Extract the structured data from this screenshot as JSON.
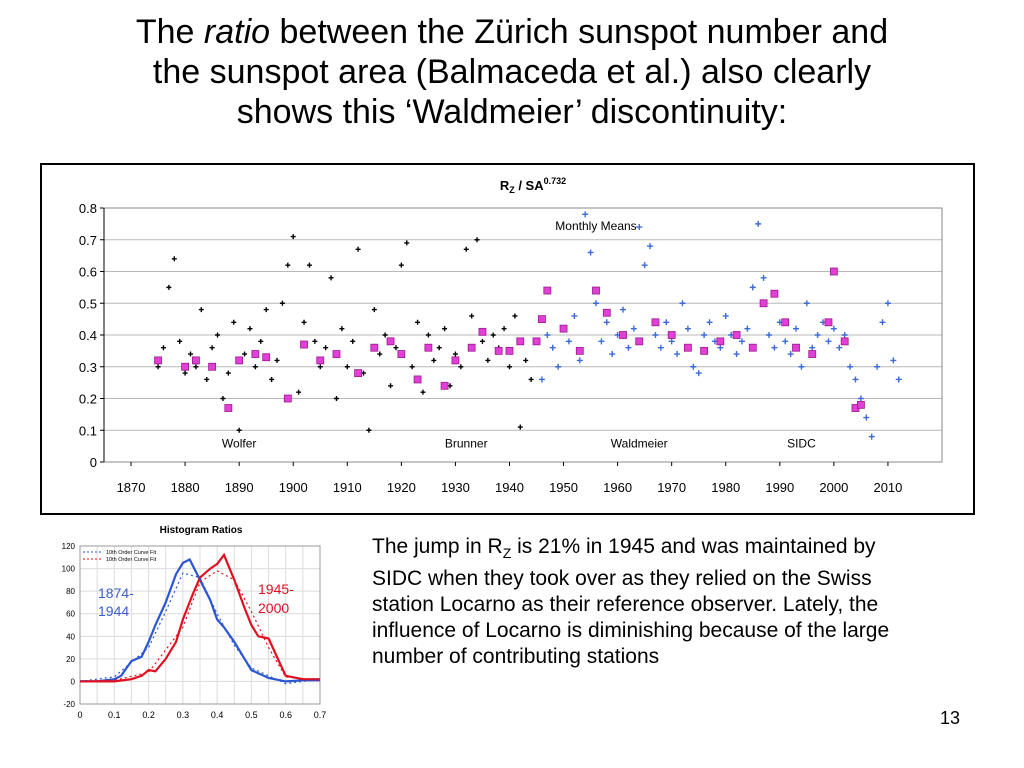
{
  "slide": {
    "title_pre": "The ",
    "title_em": "ratio",
    "title_post": " between the Zürich sunspot number and",
    "title_line2": "the sunspot area (Balmaceda et al.) also clearly",
    "title_line3": "shows this ‘Waldmeier’ discontinuity:",
    "body_pre": "The jump in R",
    "body_sub": "Z",
    "body_post": " is 21% in 1945 and was maintained by SIDC when they took over as they relied on the Swiss station Locarno as their reference observer. Lately, the influence of Locarno is diminishing because of the large number of contributing stations",
    "page_number": "13"
  },
  "chart_data": [
    {
      "type": "scatter",
      "title_main": "R",
      "title_sub": "Z",
      "title_mid": " / SA",
      "title_sup": "0.732",
      "annotation": "Monthly Means",
      "xlim": [
        1865,
        2020
      ],
      "ylim": [
        0,
        0.8
      ],
      "x_ticks": [
        1870,
        1880,
        1890,
        1900,
        1910,
        1920,
        1930,
        1940,
        1950,
        1960,
        1970,
        1980,
        1990,
        2000,
        2010
      ],
      "y_ticks": [
        0,
        0.1,
        0.2,
        0.3,
        0.4,
        0.5,
        0.6,
        0.7,
        0.8
      ],
      "y_tick_labels": [
        "0",
        "0.1",
        "0.2",
        "0.3",
        "0.4",
        "0.5",
        "0.6",
        "0.7",
        "0.8"
      ],
      "grid": true,
      "era_labels": [
        {
          "text": "Wolfer",
          "x": 1890
        },
        {
          "text": "Brunner",
          "x": 1932
        },
        {
          "text": "Waldmeier",
          "x": 1964
        },
        {
          "text": "SIDC",
          "x": 1994
        }
      ],
      "colors": {
        "monthly_before": "#000000",
        "monthly_after": "#3a6bd8",
        "yearly": "#e23fd8",
        "yearly_edge": "#9a1a8a"
      },
      "series": [
        {
          "role": "monthly_before",
          "marker": "+",
          "points": [
            [
              1875,
              0.3
            ],
            [
              1876,
              0.36
            ],
            [
              1877,
              0.55
            ],
            [
              1878,
              0.64
            ],
            [
              1879,
              0.38
            ],
            [
              1880,
              0.28
            ],
            [
              1881,
              0.34
            ],
            [
              1882,
              0.3
            ],
            [
              1883,
              0.48
            ],
            [
              1884,
              0.26
            ],
            [
              1885,
              0.36
            ],
            [
              1886,
              0.4
            ],
            [
              1887,
              0.2
            ],
            [
              1888,
              0.28
            ],
            [
              1889,
              0.44
            ],
            [
              1890,
              0.1
            ],
            [
              1891,
              0.34
            ],
            [
              1892,
              0.42
            ],
            [
              1893,
              0.3
            ],
            [
              1894,
              0.38
            ],
            [
              1895,
              0.48
            ],
            [
              1896,
              0.26
            ],
            [
              1897,
              0.32
            ],
            [
              1898,
              0.5
            ],
            [
              1899,
              0.62
            ],
            [
              1900,
              0.71
            ],
            [
              1901,
              0.22
            ],
            [
              1902,
              0.44
            ],
            [
              1903,
              0.62
            ],
            [
              1904,
              0.38
            ],
            [
              1905,
              0.3
            ],
            [
              1906,
              0.36
            ],
            [
              1907,
              0.58
            ],
            [
              1908,
              0.2
            ],
            [
              1909,
              0.42
            ],
            [
              1910,
              0.3
            ],
            [
              1911,
              0.38
            ],
            [
              1912,
              0.67
            ],
            [
              1913,
              0.28
            ],
            [
              1914,
              0.1
            ],
            [
              1915,
              0.48
            ],
            [
              1916,
              0.34
            ],
            [
              1917,
              0.4
            ],
            [
              1918,
              0.24
            ],
            [
              1919,
              0.36
            ],
            [
              1920,
              0.62
            ],
            [
              1921,
              0.69
            ],
            [
              1922,
              0.3
            ],
            [
              1923,
              0.44
            ],
            [
              1924,
              0.22
            ],
            [
              1925,
              0.4
            ],
            [
              1926,
              0.32
            ],
            [
              1927,
              0.36
            ],
            [
              1928,
              0.42
            ],
            [
              1929,
              0.24
            ],
            [
              1930,
              0.34
            ],
            [
              1931,
              0.3
            ],
            [
              1932,
              0.67
            ],
            [
              1933,
              0.46
            ],
            [
              1934,
              0.7
            ],
            [
              1935,
              0.38
            ],
            [
              1936,
              0.32
            ],
            [
              1937,
              0.4
            ],
            [
              1938,
              0.36
            ],
            [
              1939,
              0.42
            ],
            [
              1940,
              0.3
            ],
            [
              1941,
              0.46
            ],
            [
              1942,
              0.11
            ],
            [
              1943,
              0.32
            ],
            [
              1944,
              0.26
            ]
          ]
        },
        {
          "role": "monthly_after",
          "marker": "+",
          "points": [
            [
              1946,
              0.26
            ],
            [
              1947,
              0.4
            ],
            [
              1948,
              0.36
            ],
            [
              1949,
              0.3
            ],
            [
              1950,
              0.42
            ],
            [
              1951,
              0.38
            ],
            [
              1952,
              0.46
            ],
            [
              1953,
              0.32
            ],
            [
              1954,
              0.78
            ],
            [
              1955,
              0.66
            ],
            [
              1956,
              0.5
            ],
            [
              1957,
              0.38
            ],
            [
              1958,
              0.44
            ],
            [
              1959,
              0.34
            ],
            [
              1960,
              0.4
            ],
            [
              1961,
              0.48
            ],
            [
              1962,
              0.36
            ],
            [
              1963,
              0.42
            ],
            [
              1964,
              0.74
            ],
            [
              1965,
              0.62
            ],
            [
              1966,
              0.68
            ],
            [
              1967,
              0.4
            ],
            [
              1968,
              0.36
            ],
            [
              1969,
              0.44
            ],
            [
              1970,
              0.38
            ],
            [
              1971,
              0.34
            ],
            [
              1972,
              0.5
            ],
            [
              1973,
              0.42
            ],
            [
              1974,
              0.3
            ],
            [
              1975,
              0.28
            ],
            [
              1976,
              0.4
            ],
            [
              1977,
              0.44
            ],
            [
              1978,
              0.38
            ],
            [
              1979,
              0.36
            ],
            [
              1980,
              0.46
            ],
            [
              1981,
              0.4
            ],
            [
              1982,
              0.34
            ],
            [
              1983,
              0.38
            ],
            [
              1984,
              0.42
            ],
            [
              1985,
              0.55
            ],
            [
              1986,
              0.75
            ],
            [
              1987,
              0.58
            ],
            [
              1988,
              0.4
            ],
            [
              1989,
              0.36
            ],
            [
              1990,
              0.44
            ],
            [
              1991,
              0.38
            ],
            [
              1992,
              0.34
            ],
            [
              1993,
              0.42
            ],
            [
              1994,
              0.3
            ],
            [
              1995,
              0.5
            ],
            [
              1996,
              0.36
            ],
            [
              1997,
              0.4
            ],
            [
              1998,
              0.44
            ],
            [
              1999,
              0.38
            ],
            [
              2000,
              0.42
            ],
            [
              2001,
              0.36
            ],
            [
              2002,
              0.4
            ],
            [
              2003,
              0.3
            ],
            [
              2004,
              0.26
            ],
            [
              2005,
              0.2
            ],
            [
              2006,
              0.14
            ],
            [
              2007,
              0.08
            ],
            [
              2008,
              0.3
            ],
            [
              2009,
              0.44
            ],
            [
              2010,
              0.5
            ],
            [
              2011,
              0.32
            ],
            [
              2012,
              0.26
            ]
          ]
        },
        {
          "role": "yearly",
          "marker": "square",
          "points": [
            [
              1875,
              0.32
            ],
            [
              1880,
              0.3
            ],
            [
              1882,
              0.32
            ],
            [
              1885,
              0.3
            ],
            [
              1888,
              0.17
            ],
            [
              1890,
              0.32
            ],
            [
              1893,
              0.34
            ],
            [
              1895,
              0.33
            ],
            [
              1899,
              0.2
            ],
            [
              1902,
              0.37
            ],
            [
              1905,
              0.32
            ],
            [
              1908,
              0.34
            ],
            [
              1912,
              0.28
            ],
            [
              1915,
              0.36
            ],
            [
              1918,
              0.38
            ],
            [
              1920,
              0.34
            ],
            [
              1923,
              0.26
            ],
            [
              1925,
              0.36
            ],
            [
              1928,
              0.24
            ],
            [
              1930,
              0.32
            ],
            [
              1933,
              0.36
            ],
            [
              1935,
              0.41
            ],
            [
              1938,
              0.35
            ],
            [
              1940,
              0.35
            ],
            [
              1942,
              0.38
            ],
            [
              1945,
              0.38
            ],
            [
              1946,
              0.45
            ],
            [
              1947,
              0.54
            ],
            [
              1950,
              0.42
            ],
            [
              1953,
              0.35
            ],
            [
              1956,
              0.54
            ],
            [
              1958,
              0.47
            ],
            [
              1961,
              0.4
            ],
            [
              1964,
              0.38
            ],
            [
              1967,
              0.44
            ],
            [
              1970,
              0.4
            ],
            [
              1973,
              0.36
            ],
            [
              1976,
              0.35
            ],
            [
              1979,
              0.38
            ],
            [
              1982,
              0.4
            ],
            [
              1985,
              0.36
            ],
            [
              1987,
              0.5
            ],
            [
              1989,
              0.53
            ],
            [
              1991,
              0.44
            ],
            [
              1993,
              0.36
            ],
            [
              1996,
              0.34
            ],
            [
              1999,
              0.44
            ],
            [
              2000,
              0.6
            ],
            [
              2002,
              0.38
            ],
            [
              2004,
              0.17
            ],
            [
              2005,
              0.18
            ]
          ]
        }
      ]
    },
    {
      "type": "line",
      "title": "Histogram Ratios",
      "xlim": [
        0,
        0.7
      ],
      "ylim": [
        -20,
        120
      ],
      "x_ticks": [
        0,
        0.1,
        0.2,
        0.3,
        0.4,
        0.5,
        0.6,
        0.7
      ],
      "y_ticks": [
        -20,
        0,
        20,
        40,
        60,
        80,
        100,
        120
      ],
      "y_tick_labels": [
        "-20",
        "0",
        "20",
        "40",
        "60",
        "80",
        "100",
        "120"
      ],
      "grid": true,
      "legend": [
        "10th Order Curve Fit",
        "10th Order Curve Fit"
      ],
      "legend_placement": "top-left",
      "annotations": [
        {
          "text_line1": "1874-",
          "text_line2": "1944",
          "color": "#3a5fc8"
        },
        {
          "text_line1": "1945-",
          "text_line2": "2000",
          "color": "#e01020"
        }
      ],
      "series": [
        {
          "name": "1874-1944",
          "color": "#2a56d0",
          "x": [
            0,
            0.05,
            0.1,
            0.12,
            0.15,
            0.18,
            0.2,
            0.22,
            0.25,
            0.28,
            0.3,
            0.32,
            0.35,
            0.38,
            0.4,
            0.42,
            0.45,
            0.48,
            0.5,
            0.55,
            0.6,
            0.65,
            0.7
          ],
          "y": [
            0,
            0,
            2,
            5,
            18,
            22,
            35,
            50,
            70,
            95,
            105,
            108,
            90,
            72,
            55,
            48,
            35,
            20,
            10,
            3,
            0,
            1,
            1
          ]
        },
        {
          "name": "1945-2000",
          "color": "#e01020",
          "x": [
            0,
            0.05,
            0.1,
            0.15,
            0.18,
            0.2,
            0.22,
            0.25,
            0.28,
            0.3,
            0.33,
            0.35,
            0.38,
            0.4,
            0.42,
            0.45,
            0.48,
            0.5,
            0.52,
            0.55,
            0.58,
            0.6,
            0.65,
            0.7
          ],
          "y": [
            0,
            0,
            0,
            2,
            5,
            10,
            9,
            20,
            35,
            55,
            78,
            92,
            100,
            104,
            112,
            90,
            65,
            50,
            40,
            38,
            18,
            5,
            2,
            2
          ]
        },
        {
          "name": "blue fit",
          "color": "#2a56d0",
          "dashed": true,
          "x": [
            0,
            0.1,
            0.2,
            0.25,
            0.3,
            0.35,
            0.4,
            0.45,
            0.5,
            0.6,
            0.7
          ],
          "y": [
            0,
            4,
            30,
            62,
            96,
            92,
            60,
            32,
            12,
            -2,
            2
          ]
        },
        {
          "name": "red fit",
          "color": "#e01020",
          "dashed": true,
          "x": [
            0,
            0.1,
            0.2,
            0.3,
            0.35,
            0.4,
            0.45,
            0.5,
            0.55,
            0.6,
            0.7
          ],
          "y": [
            0,
            1,
            8,
            48,
            88,
            98,
            90,
            62,
            30,
            4,
            1
          ]
        }
      ]
    }
  ]
}
